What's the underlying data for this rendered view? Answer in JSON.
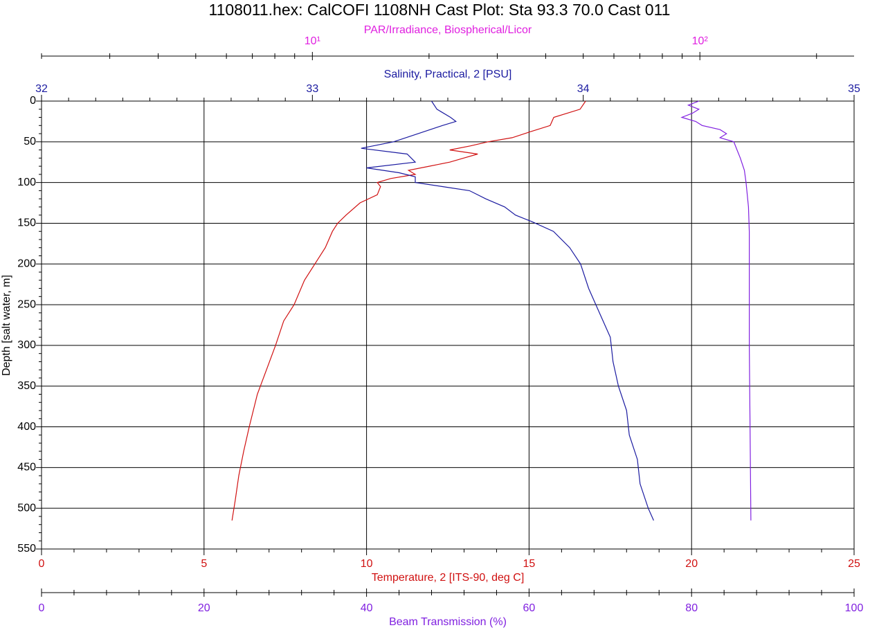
{
  "chart_data": {
    "type": "profile",
    "title": "1108011.hex: CalCOFI 1108NH Cast Plot: Sta 93.3 70.0 Cast 011",
    "ylabel": "Depth [salt water, m]",
    "ylim": [
      0,
      550
    ],
    "yticks": [
      0,
      50,
      100,
      150,
      200,
      250,
      300,
      350,
      400,
      450,
      500,
      550
    ],
    "yticks_minor": [
      10,
      20,
      30,
      40,
      60,
      70,
      80,
      90,
      110,
      120,
      130,
      140,
      160,
      170,
      180,
      190,
      210,
      220,
      230,
      240,
      260,
      270,
      280,
      290,
      310,
      320,
      330,
      340,
      360,
      370,
      380,
      390,
      410,
      420,
      430,
      440,
      460,
      470,
      480,
      490,
      510,
      520,
      530,
      540
    ],
    "grid": true,
    "x_axes": [
      {
        "label": "PAR/Irradiance, Biospherical/Licor",
        "color": "#e020e0",
        "log": true,
        "lim": [
          2,
          250
        ],
        "ticks": [
          {
            "value": 10,
            "label": "10¹"
          },
          {
            "value": 100,
            "label": "10²"
          }
        ],
        "minor_ticks": [
          2,
          3,
          4,
          5,
          6,
          7,
          8,
          9,
          20,
          30,
          40,
          50,
          60,
          70,
          80,
          90,
          200
        ]
      },
      {
        "label": "Salinity, Practical, 2 [PSU]",
        "color": "#1a1aa0",
        "log": false,
        "lim": [
          32,
          35
        ],
        "ticks": [
          32,
          33,
          34,
          35
        ],
        "minor_ticks": [
          32.1,
          32.2,
          32.3,
          32.4,
          32.5,
          32.6,
          32.7,
          32.8,
          32.9,
          33.1,
          33.2,
          33.3,
          33.4,
          33.5,
          33.6,
          33.7,
          33.8,
          33.9,
          34.1,
          34.2,
          34.3,
          34.4,
          34.5,
          34.6,
          34.7,
          34.8,
          34.9
        ]
      },
      {
        "label": "Temperature, 2 [ITS-90, deg C]",
        "color": "#d01010",
        "log": false,
        "lim": [
          0,
          25
        ],
        "ticks": [
          0,
          5,
          10,
          15,
          20,
          25
        ],
        "minor_ticks": [
          1,
          2,
          3,
          4,
          6,
          7,
          8,
          9,
          11,
          12,
          13,
          14,
          16,
          17,
          18,
          19,
          21,
          22,
          23,
          24
        ]
      },
      {
        "label": "Beam Transmission (%)",
        "color": "#8020e0",
        "log": false,
        "lim": [
          0,
          100
        ],
        "ticks": [
          0,
          20,
          40,
          60,
          80,
          100
        ],
        "minor_ticks": [
          4,
          8,
          12,
          16,
          24,
          28,
          32,
          36,
          44,
          48,
          52,
          56,
          64,
          68,
          72,
          76,
          84,
          88,
          92,
          96
        ]
      }
    ],
    "series": [
      {
        "axis": 2,
        "color": "#d01010",
        "depth": [
          0,
          10,
          20,
          30,
          38,
          45,
          50,
          55,
          60,
          65,
          70,
          75,
          80,
          85,
          90,
          95,
          100,
          105,
          115,
          125,
          140,
          150,
          160,
          180,
          200,
          220,
          250,
          270,
          300,
          330,
          360,
          400,
          430,
          460,
          490,
          515
        ],
        "values": [
          16.74,
          16.57,
          15.76,
          15.65,
          15.01,
          14.48,
          13.74,
          13.2,
          12.56,
          13.42,
          12.99,
          12.56,
          11.93,
          11.29,
          11.5,
          10.75,
          10.33,
          10.43,
          10.33,
          9.8,
          9.37,
          9.11,
          8.95,
          8.73,
          8.41,
          8.09,
          7.77,
          7.45,
          7.2,
          6.92,
          6.64,
          6.39,
          6.22,
          6.07,
          5.96,
          5.86
        ]
      },
      {
        "axis": 1,
        "color": "#1a1aa0",
        "depth": [
          0,
          10,
          20,
          25,
          30,
          40,
          50,
          58,
          65,
          75,
          82,
          88,
          93,
          100,
          105,
          110,
          120,
          130,
          140,
          148,
          160,
          180,
          200,
          230,
          260,
          290,
          320,
          350,
          380,
          410,
          440,
          470,
          500,
          515
        ],
        "values": [
          33.44,
          33.46,
          33.51,
          33.53,
          33.48,
          33.39,
          33.3,
          33.18,
          33.35,
          33.38,
          33.2,
          33.32,
          33.38,
          33.38,
          33.48,
          33.58,
          33.64,
          33.71,
          33.75,
          33.81,
          33.89,
          33.95,
          33.99,
          34.02,
          34.06,
          34.1,
          34.11,
          34.13,
          34.16,
          34.17,
          34.2,
          34.21,
          34.24,
          34.26
        ]
      },
      {
        "axis": 3,
        "color": "#8020e0",
        "depth": [
          0,
          5,
          10,
          15,
          20,
          25,
          30,
          35,
          40,
          45,
          50,
          60,
          70,
          85,
          100,
          130,
          160,
          200,
          300,
          400,
          515
        ],
        "values": [
          80.9,
          79.6,
          80.9,
          80.1,
          78.8,
          80.5,
          81.3,
          83.5,
          84.3,
          83.5,
          85.2,
          85.6,
          86.0,
          86.5,
          86.7,
          87.0,
          87.1,
          87.1,
          87.1,
          87.2,
          87.3
        ]
      }
    ]
  }
}
